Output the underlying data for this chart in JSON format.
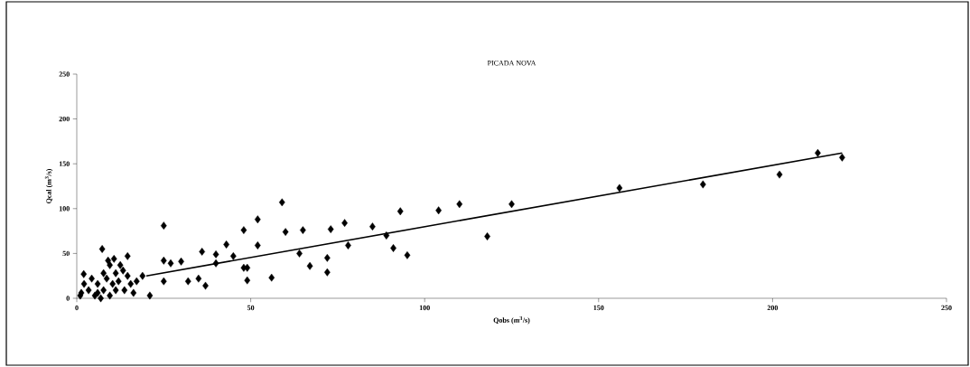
{
  "chart_data": {
    "type": "scatter",
    "title": "PICADA NOVA",
    "xlabel": "Qobs (m$^{3}$/s)",
    "ylabel": "Qcal (m$^{3}$/s)",
    "xlim": [
      0,
      250
    ],
    "ylim": [
      0,
      250
    ],
    "xticks": [
      0,
      50,
      100,
      150,
      200,
      250
    ],
    "yticks": [
      0,
      50,
      100,
      150,
      200,
      250
    ],
    "grid": false,
    "marker": "diamond",
    "series": [
      {
        "color": "#000000",
        "x": [
          213,
          220,
          202,
          180,
          156,
          125,
          118,
          110,
          104,
          95,
          93,
          91,
          89,
          85,
          78,
          77,
          73,
          72,
          72,
          67,
          65,
          64,
          60,
          59,
          56,
          52,
          52,
          49,
          49,
          48,
          48,
          45,
          43,
          40,
          40,
          37,
          36,
          35,
          32,
          30,
          27,
          25,
          25,
          25,
          21,
          7.3,
          9,
          10.7,
          14.6,
          12.5,
          1.3,
          2.1,
          3.4,
          4.3,
          5.2,
          6.9,
          6,
          7.7,
          8.6,
          9.5,
          10.3,
          11.2,
          12,
          13.7,
          14.6,
          15.5,
          17.2,
          18.9,
          16.3,
          13.3,
          9.5,
          7.7,
          1,
          11.2,
          6,
          2
        ],
        "values": [
          162,
          157,
          138,
          127,
          123,
          105,
          69,
          105,
          98,
          48,
          97,
          56,
          70,
          80,
          59,
          84,
          77,
          29,
          45,
          36,
          76,
          50,
          74,
          107,
          23,
          88,
          59,
          34,
          20,
          76,
          34,
          47,
          60,
          49,
          39,
          14,
          52,
          22,
          19,
          41,
          39,
          81,
          42,
          19,
          3,
          55,
          42,
          44,
          47,
          37,
          6,
          16,
          9,
          22,
          3,
          0,
          16,
          9,
          22,
          3,
          16,
          9,
          19,
          9,
          25,
          16,
          19,
          25,
          6,
          31,
          37,
          28,
          3,
          28,
          6,
          27
        ]
      },
      {
        "type": "line",
        "color": "#000000",
        "marker": "none",
        "line_style": "solid",
        "x": [
          20,
          220
        ],
        "values": [
          25,
          162
        ]
      }
    ]
  }
}
